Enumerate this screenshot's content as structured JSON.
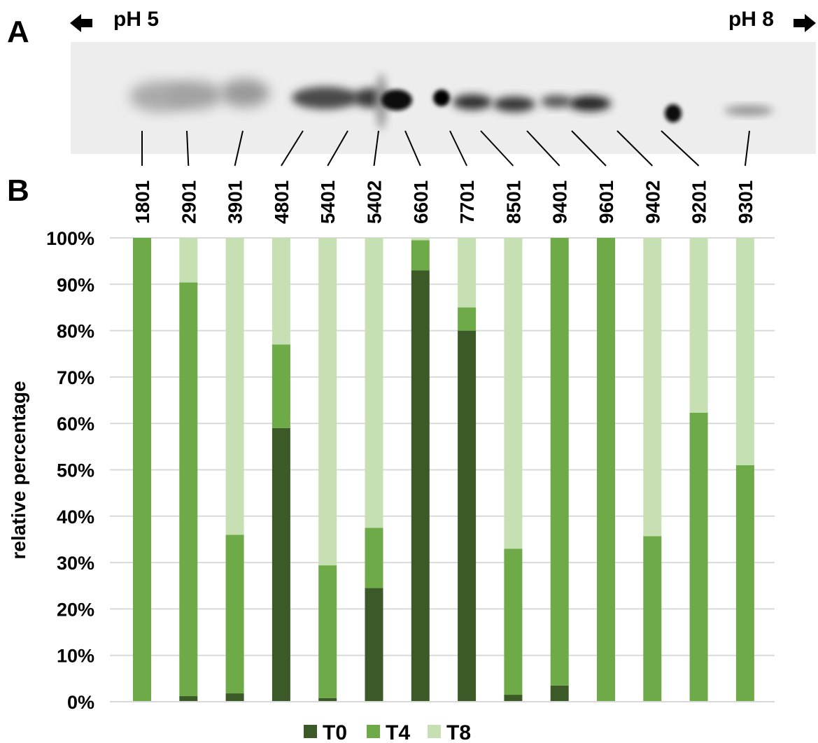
{
  "panels": {
    "a": "A",
    "b": "B"
  },
  "gel": {
    "ph_left": "pH 5",
    "ph_right": "pH 8"
  },
  "colors": {
    "T0": "#3c5a27",
    "T4": "#6faa48",
    "T8": "#c6e0b4",
    "grid": "#d9d9d9"
  },
  "chart_data": {
    "type": "bar",
    "stacked": true,
    "categories": [
      "1801",
      "2901",
      "3901",
      "4801",
      "5401",
      "5402",
      "6601",
      "7701",
      "8501",
      "9401",
      "9601",
      "9402",
      "9201",
      "9301"
    ],
    "series": [
      {
        "name": "T0",
        "values": [
          0,
          1.2,
          1.8,
          59,
          0.8,
          24.5,
          93,
          80,
          1.5,
          3.5,
          0,
          0,
          0,
          0
        ]
      },
      {
        "name": "T4",
        "values": [
          100,
          89.2,
          34.2,
          18,
          28.6,
          13,
          6.5,
          5,
          31.5,
          96.5,
          100,
          35.7,
          62.3,
          51
        ]
      },
      {
        "name": "T8",
        "values": [
          0,
          9.6,
          64,
          23,
          70.6,
          62.5,
          0.5,
          15,
          67,
          0,
          0,
          64.3,
          37.7,
          49
        ]
      }
    ],
    "ylabel": "relative percentage",
    "ylim": [
      0,
      100
    ],
    "yticks": [
      "0%",
      "10%",
      "20%",
      "30%",
      "40%",
      "50%",
      "60%",
      "70%",
      "80%",
      "90%",
      "100%"
    ],
    "grid": true,
    "legend": "bottom"
  }
}
